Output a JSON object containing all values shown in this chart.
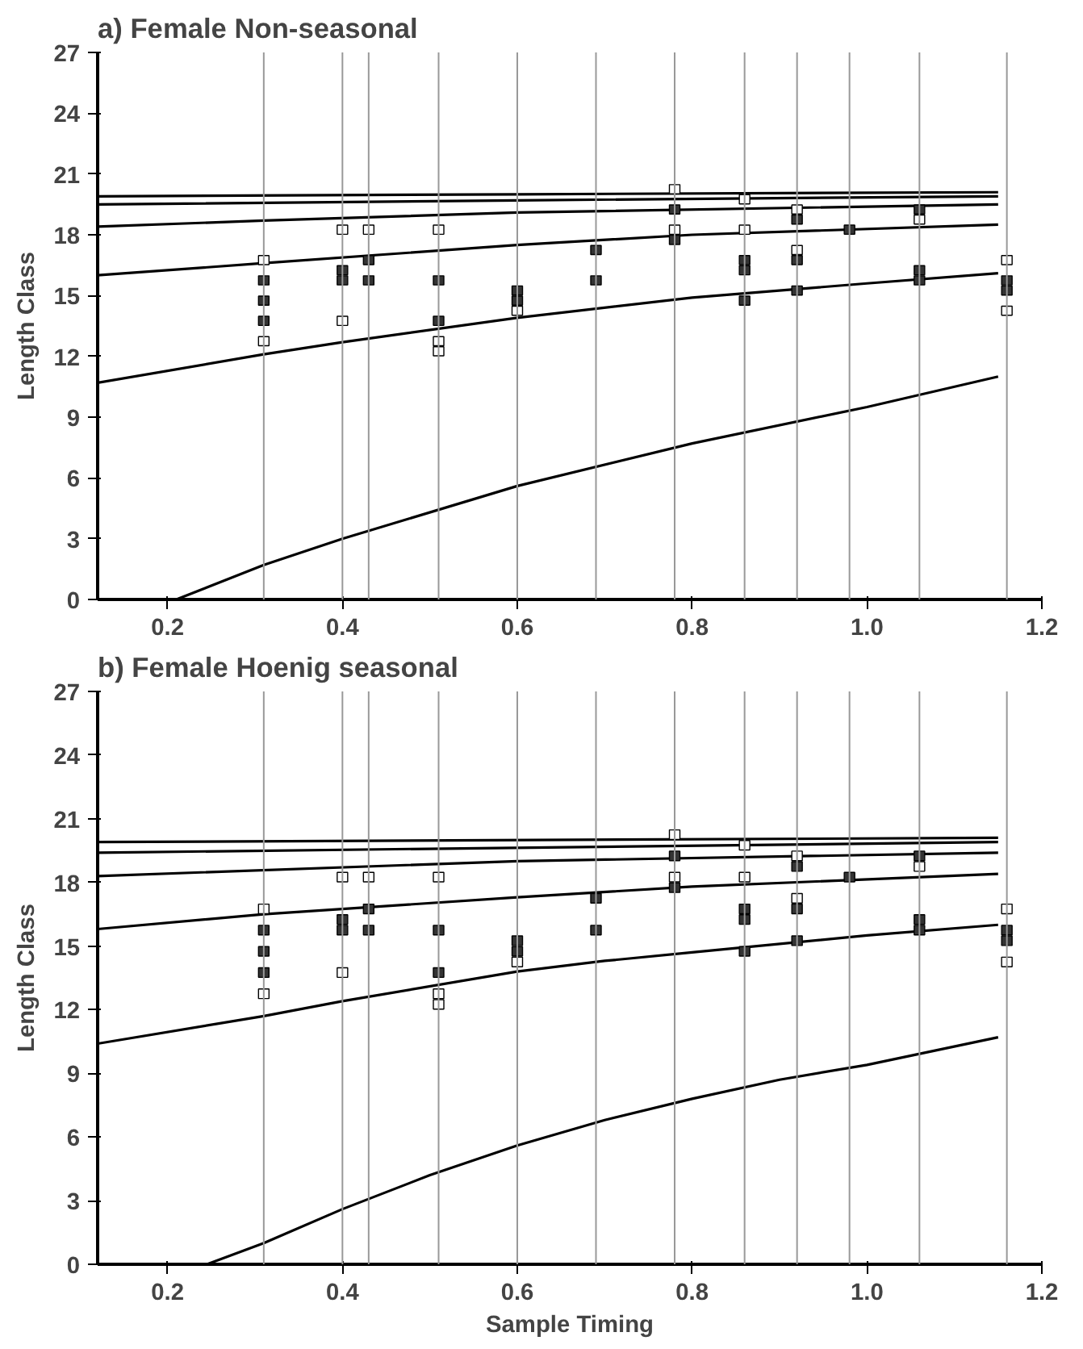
{
  "chart_data": [
    {
      "type": "line",
      "title": "a) Female Non-seasonal",
      "ylabel": "Length Class",
      "xlim": [
        0.12,
        1.2
      ],
      "ylim": [
        0,
        27
      ],
      "xticks": [
        0.2,
        0.4,
        0.6,
        0.8,
        {
          "value": 1.0,
          "label": "1.0"
        },
        1.2
      ],
      "yticks": [
        0,
        3,
        6,
        9,
        12,
        15,
        18,
        21,
        24,
        27
      ],
      "ref_lines": [
        {
          "axis": "x",
          "value": 0.31,
          "color": "#999999"
        },
        {
          "axis": "x",
          "value": 0.4,
          "color": "#999999"
        },
        {
          "axis": "x",
          "value": 0.43,
          "color": "#999999"
        },
        {
          "axis": "x",
          "value": 0.51,
          "color": "#999999"
        },
        {
          "axis": "x",
          "value": 0.6,
          "color": "#999999"
        },
        {
          "axis": "x",
          "value": 0.69,
          "color": "#999999"
        },
        {
          "axis": "x",
          "value": 0.78,
          "color": "#999999"
        },
        {
          "axis": "x",
          "value": 0.86,
          "color": "#999999"
        },
        {
          "axis": "x",
          "value": 0.92,
          "color": "#999999"
        },
        {
          "axis": "x",
          "value": 0.98,
          "color": "#999999"
        },
        {
          "axis": "x",
          "value": 1.06,
          "color": "#999999"
        },
        {
          "axis": "x",
          "value": 1.16,
          "color": "#999999"
        }
      ],
      "series": [
        {
          "color": "#000000",
          "x": [
            0.21,
            0.31,
            0.4,
            0.6,
            0.8,
            1.0,
            1.15
          ],
          "values": [
            0,
            1.7,
            3.0,
            5.6,
            7.7,
            9.5,
            11.0
          ]
        },
        {
          "color": "#000000",
          "x": [
            0.12,
            0.31,
            0.4,
            0.6,
            0.8,
            1.0,
            1.15
          ],
          "values": [
            10.7,
            12.1,
            12.7,
            13.9,
            14.9,
            15.6,
            16.1
          ]
        },
        {
          "color": "#000000",
          "x": [
            0.12,
            0.31,
            0.6,
            0.8,
            1.15
          ],
          "values": [
            16.0,
            16.6,
            17.5,
            18.0,
            18.5
          ]
        },
        {
          "color": "#000000",
          "x": [
            0.12,
            0.31,
            0.6,
            1.15
          ],
          "values": [
            18.4,
            18.7,
            19.1,
            19.5
          ]
        },
        {
          "color": "#000000",
          "x": [
            0.12,
            0.6,
            1.15
          ],
          "values": [
            19.5,
            19.7,
            19.9
          ]
        },
        {
          "color": "#000000",
          "x": [
            0.12,
            0.6,
            1.15
          ],
          "values": [
            19.9,
            20.0,
            20.1
          ]
        },
        {
          "type": "scatter",
          "marker": "square",
          "color": "#333333",
          "x": [
            0.31,
            0.31,
            0.31,
            0.4,
            0.4,
            0.43,
            0.43,
            0.51,
            0.51,
            0.6,
            0.6,
            0.69,
            0.69,
            0.78,
            0.78,
            0.86,
            0.86,
            0.86,
            0.92,
            0.92,
            0.92,
            0.98,
            1.06,
            1.06,
            1.06,
            1.16,
            1.16
          ],
          "values": [
            15.75,
            14.75,
            13.75,
            16.25,
            15.75,
            16.75,
            15.75,
            15.75,
            13.75,
            15.25,
            14.75,
            17.25,
            15.75,
            19.25,
            17.75,
            16.75,
            16.25,
            14.75,
            18.75,
            16.75,
            15.25,
            18.25,
            19.25,
            16.25,
            15.75,
            15.75,
            15.25
          ]
        },
        {
          "type": "scatter",
          "marker": "square",
          "color": "#ffffff",
          "x": [
            0.31,
            0.31,
            0.4,
            0.4,
            0.43,
            0.51,
            0.51,
            0.51,
            0.6,
            0.78,
            0.78,
            0.86,
            0.86,
            0.92,
            0.92,
            1.06,
            1.16,
            1.16
          ],
          "values": [
            16.75,
            12.75,
            18.25,
            13.75,
            18.25,
            18.25,
            12.75,
            12.25,
            14.25,
            20.25,
            18.25,
            19.75,
            18.25,
            19.25,
            17.25,
            18.75,
            16.75,
            14.25
          ]
        }
      ]
    },
    {
      "type": "line",
      "title": "b) Female Hoenig seasonal",
      "xlabel": "Sample Timing",
      "ylabel": "Length Class",
      "xlim": [
        0.12,
        1.2
      ],
      "ylim": [
        0,
        27
      ],
      "xticks": [
        0.2,
        0.4,
        0.6,
        0.8,
        {
          "value": 1.0,
          "label": "1.0"
        },
        1.2
      ],
      "yticks": [
        0,
        3,
        6,
        9,
        12,
        15,
        18,
        21,
        24,
        27
      ],
      "ref_lines": [
        {
          "axis": "x",
          "value": 0.31,
          "color": "#999999"
        },
        {
          "axis": "x",
          "value": 0.4,
          "color": "#999999"
        },
        {
          "axis": "x",
          "value": 0.43,
          "color": "#999999"
        },
        {
          "axis": "x",
          "value": 0.51,
          "color": "#999999"
        },
        {
          "axis": "x",
          "value": 0.6,
          "color": "#999999"
        },
        {
          "axis": "x",
          "value": 0.69,
          "color": "#999999"
        },
        {
          "axis": "x",
          "value": 0.78,
          "color": "#999999"
        },
        {
          "axis": "x",
          "value": 0.86,
          "color": "#999999"
        },
        {
          "axis": "x",
          "value": 0.92,
          "color": "#999999"
        },
        {
          "axis": "x",
          "value": 0.98,
          "color": "#999999"
        },
        {
          "axis": "x",
          "value": 1.06,
          "color": "#999999"
        },
        {
          "axis": "x",
          "value": 1.16,
          "color": "#999999"
        }
      ],
      "series": [
        {
          "color": "#000000",
          "x": [
            0.245,
            0.31,
            0.4,
            0.5,
            0.6,
            0.7,
            0.8,
            0.9,
            1.0,
            1.15
          ],
          "values": [
            0,
            1.0,
            2.6,
            4.2,
            5.6,
            6.8,
            7.8,
            8.7,
            9.4,
            10.7
          ]
        },
        {
          "color": "#000000",
          "x": [
            0.12,
            0.31,
            0.4,
            0.6,
            0.7,
            0.8,
            1.0,
            1.15
          ],
          "values": [
            10.4,
            11.7,
            12.4,
            13.8,
            14.3,
            14.7,
            15.5,
            16.0
          ]
        },
        {
          "color": "#000000",
          "x": [
            0.12,
            0.31,
            0.6,
            0.8,
            1.15
          ],
          "values": [
            15.8,
            16.5,
            17.3,
            17.8,
            18.4
          ]
        },
        {
          "color": "#000000",
          "x": [
            0.12,
            0.6,
            1.15
          ],
          "values": [
            18.3,
            19.0,
            19.4
          ]
        },
        {
          "color": "#000000",
          "x": [
            0.12,
            1.15
          ],
          "values": [
            19.4,
            19.9
          ]
        },
        {
          "color": "#000000",
          "x": [
            0.12,
            1.15
          ],
          "values": [
            19.9,
            20.1
          ]
        },
        {
          "type": "scatter",
          "marker": "square",
          "color": "#333333",
          "x": [
            0.31,
            0.31,
            0.31,
            0.4,
            0.4,
            0.43,
            0.43,
            0.51,
            0.51,
            0.6,
            0.6,
            0.69,
            0.69,
            0.78,
            0.78,
            0.86,
            0.86,
            0.86,
            0.92,
            0.92,
            0.92,
            0.98,
            1.06,
            1.06,
            1.06,
            1.16,
            1.16
          ],
          "values": [
            15.75,
            14.75,
            13.75,
            16.25,
            15.75,
            16.75,
            15.75,
            15.75,
            13.75,
            15.25,
            14.75,
            17.25,
            15.75,
            19.25,
            17.75,
            16.75,
            16.25,
            14.75,
            18.75,
            16.75,
            15.25,
            18.25,
            19.25,
            16.25,
            15.75,
            15.75,
            15.25
          ]
        },
        {
          "type": "scatter",
          "marker": "square",
          "color": "#ffffff",
          "x": [
            0.31,
            0.31,
            0.4,
            0.4,
            0.43,
            0.51,
            0.51,
            0.51,
            0.6,
            0.78,
            0.78,
            0.86,
            0.86,
            0.92,
            0.92,
            1.06,
            1.16,
            1.16
          ],
          "values": [
            16.75,
            12.75,
            18.25,
            13.75,
            18.25,
            18.25,
            12.75,
            12.25,
            14.25,
            20.25,
            18.25,
            19.75,
            18.25,
            19.25,
            17.25,
            18.75,
            16.75,
            14.25
          ]
        }
      ]
    }
  ]
}
